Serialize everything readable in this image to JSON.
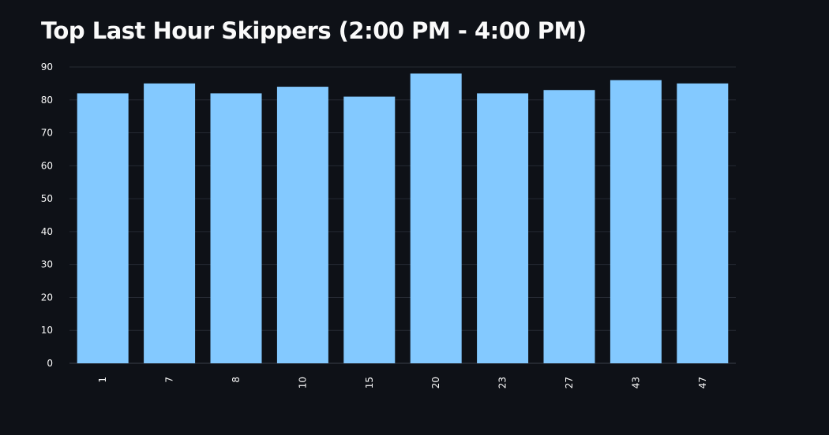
{
  "page": {
    "title": "Top Last Hour Skippers (2:00 PM - 4:00 PM)"
  },
  "chart_data": {
    "type": "bar",
    "title": "Top Last Hour Skippers (2:00 PM - 4:00 PM)",
    "xlabel": "",
    "ylabel": "",
    "categories": [
      "1",
      "7",
      "8",
      "10",
      "15",
      "20",
      "23",
      "27",
      "43",
      "47"
    ],
    "values": [
      82,
      85,
      82,
      84,
      81,
      88,
      82,
      83,
      86,
      85
    ],
    "ylim": [
      0,
      90
    ],
    "yticks": [
      0,
      10,
      20,
      30,
      40,
      50,
      60,
      70,
      80,
      90
    ],
    "grid": true,
    "legend": "none",
    "colors": {
      "background": "#0e1117",
      "bar": "#83c9ff",
      "grid": "#262a33",
      "text": "#fafafa"
    }
  }
}
